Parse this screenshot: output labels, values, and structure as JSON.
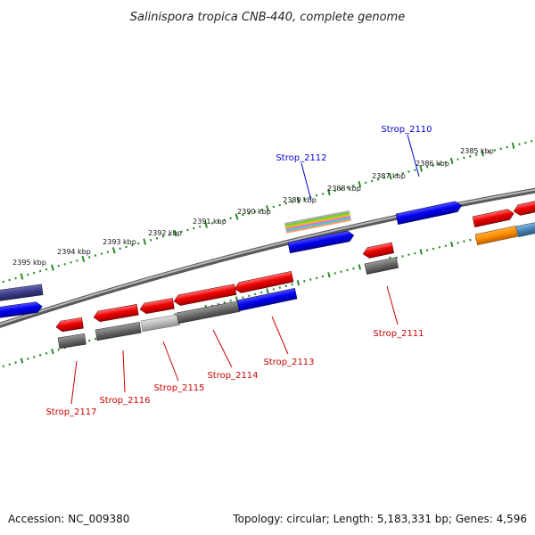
{
  "title": "Salinispora tropica CNB-440, complete genome",
  "footer": {
    "accession": "Accession: NC_009380",
    "summary": "Topology: circular; Length: 5,183,331 bp; Genes: 4,596"
  },
  "colors": {
    "forward_label": "#0000cc",
    "reverse_label": "#cc0000",
    "tick": "#2a8a2a",
    "backbone": "#8a8a8a"
  },
  "scale_ticks": [
    {
      "label": "2395 kbp"
    },
    {
      "label": "2394 kbp"
    },
    {
      "label": "2393 kbp"
    },
    {
      "label": "2392 kbp"
    },
    {
      "label": "2391 kbp"
    },
    {
      "label": "2390 kbp"
    },
    {
      "label": "2389 kbp"
    },
    {
      "label": "2388 kbp"
    },
    {
      "label": "2387 kbp"
    },
    {
      "label": "2386 kbp"
    },
    {
      "label": "2385 kbp"
    }
  ],
  "gene_labels": {
    "forward": [
      {
        "name": "Strop_2112"
      },
      {
        "name": "Strop_2110"
      }
    ],
    "reverse": [
      {
        "name": "Strop_2117"
      },
      {
        "name": "Strop_2116"
      },
      {
        "name": "Strop_2115"
      },
      {
        "name": "Strop_2114"
      },
      {
        "name": "Strop_2113"
      },
      {
        "name": "Strop_2111"
      }
    ]
  }
}
